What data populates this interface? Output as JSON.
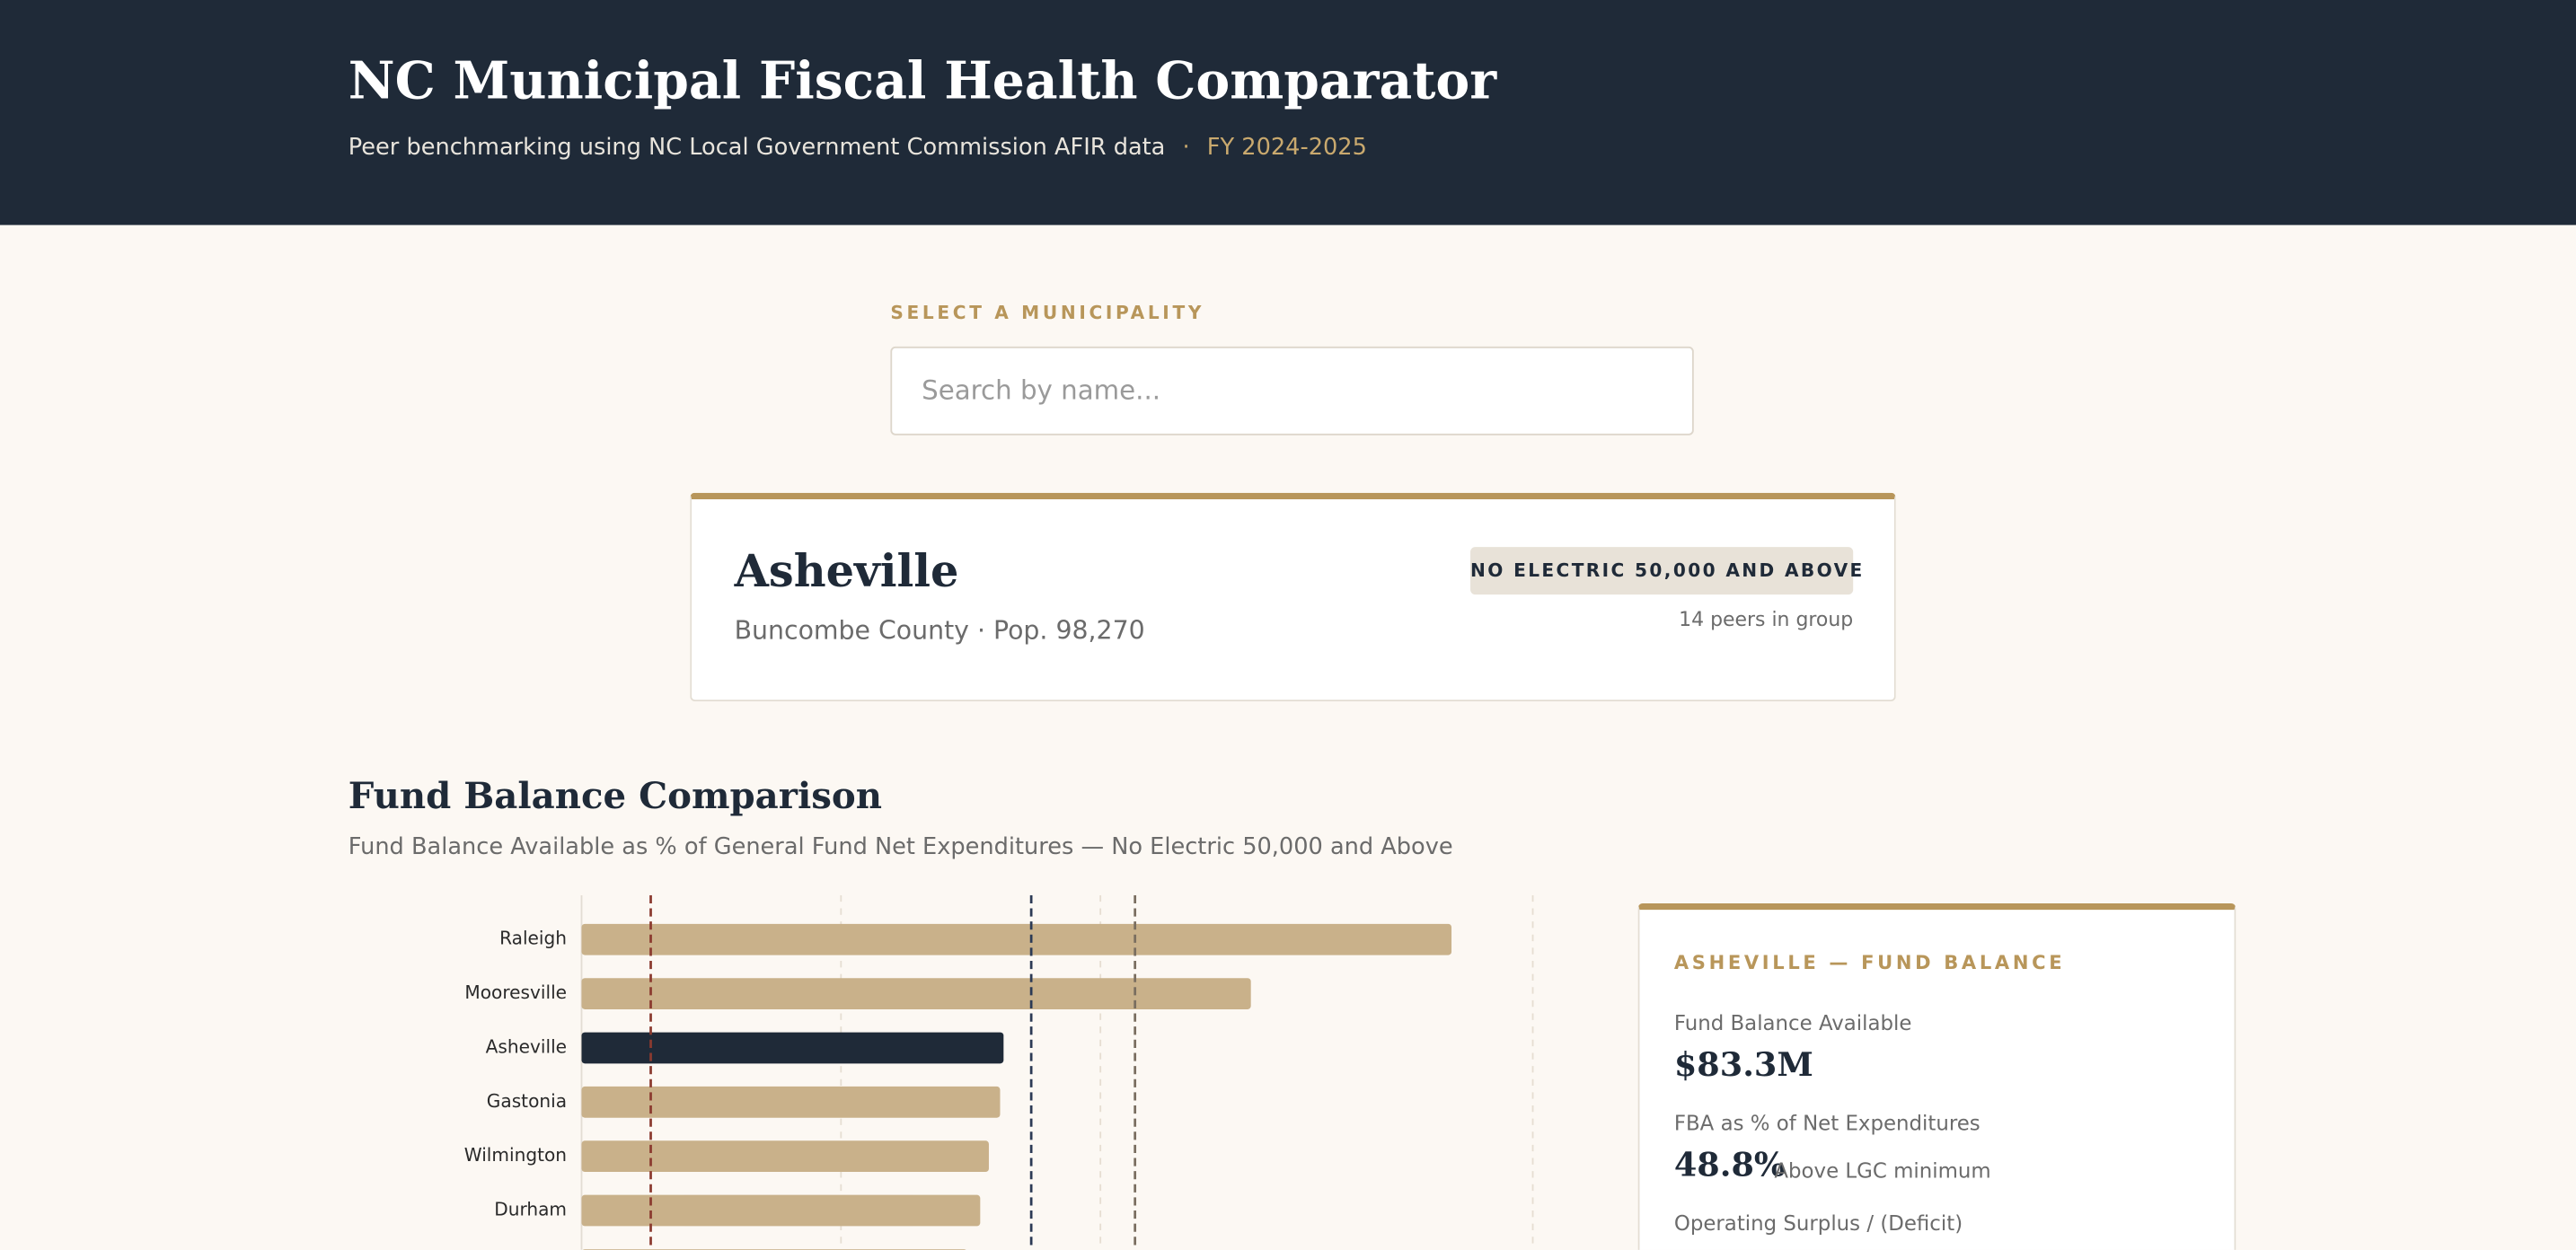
{
  "header": {
    "title": "NC Municipal Fiscal Health Comparator",
    "subtitle": "Peer benchmarking using NC Local Government Commission AFIR data",
    "separator": "·",
    "fiscal_year": "FY 2024-2025"
  },
  "search": {
    "label": "SELECT A MUNICIPALITY",
    "placeholder": "Search by name..."
  },
  "profile": {
    "name": "Asheville",
    "details": "Buncombe County · Pop. 98,270",
    "group": "NO ELECTRIC 50,000 AND ABOVE",
    "peers": "14 peers in group"
  },
  "section": {
    "title": "Fund Balance Comparison",
    "subtitle": "Fund Balance Available as % of General Fund Net Expenditures — No Electric 50,000 and Above"
  },
  "chart_data": {
    "type": "hbar",
    "categories": [
      "Raleigh",
      "Mooresville",
      "Asheville",
      "Gastonia",
      "Wilmington",
      "Durham",
      null
    ],
    "values": [
      100.6,
      77.4,
      48.8,
      48.4,
      47.1,
      46.1,
      44.6
    ],
    "color": "#c9b18a",
    "highlight_index": 2,
    "highlight_color": "#1f2a38",
    "xlim": [
      0,
      110
    ],
    "xgrid": [
      30,
      60,
      110
    ],
    "reference_lines": [
      {
        "value": 8,
        "color": "#8b3a2f"
      },
      {
        "value": 52,
        "color": "#2c3a55"
      },
      {
        "value": 64,
        "color": "#7a6e60"
      }
    ]
  },
  "panel": {
    "title": "ASHEVILLE — FUND BALANCE",
    "items": [
      {
        "label": "Fund Balance Available",
        "value": "$83.3M"
      },
      {
        "label": "FBA as % of Net Expenditures",
        "value": "48.8%",
        "note": "Above LGC minimum"
      },
      {
        "label": "Operating Surplus / (Deficit)"
      }
    ]
  }
}
